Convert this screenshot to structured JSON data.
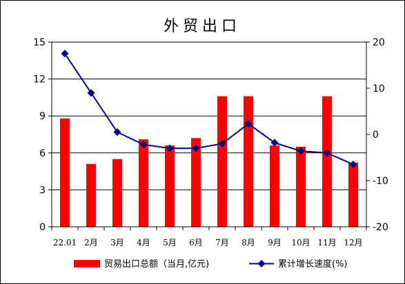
{
  "chart_data": {
    "type": "bar+line",
    "title": "外贸出口",
    "categories": [
      "22.01",
      "2月",
      "3月",
      "4月",
      "5月",
      "6月",
      "7月",
      "8月",
      "9月",
      "10月",
      "11月",
      "12月"
    ],
    "left_axis": {
      "ylim": [
        0,
        15
      ],
      "ticks": [
        "0",
        "3",
        "6",
        "9",
        "12",
        "15"
      ]
    },
    "right_axis": {
      "ylim": [
        -20,
        20
      ],
      "ticks": [
        "-20",
        "-10",
        "0",
        "10",
        "20"
      ]
    },
    "series": [
      {
        "name": "贸易出口总额（当月,亿元)",
        "type": "bar",
        "axis": "left",
        "color": "#ff0000",
        "values": [
          8.8,
          5.1,
          5.5,
          7.1,
          6.6,
          7.2,
          10.6,
          10.6,
          6.6,
          6.5,
          10.6,
          5.2
        ]
      },
      {
        "name": "累计增长速度(%)",
        "type": "line",
        "axis": "right",
        "color": "#000080",
        "values": [
          17.5,
          9.0,
          0.5,
          -2.2,
          -3.0,
          -3.0,
          -2.0,
          2.3,
          -1.8,
          -3.6,
          -4.0,
          -6.5
        ]
      }
    ],
    "grid": true,
    "legend": "bottom"
  }
}
